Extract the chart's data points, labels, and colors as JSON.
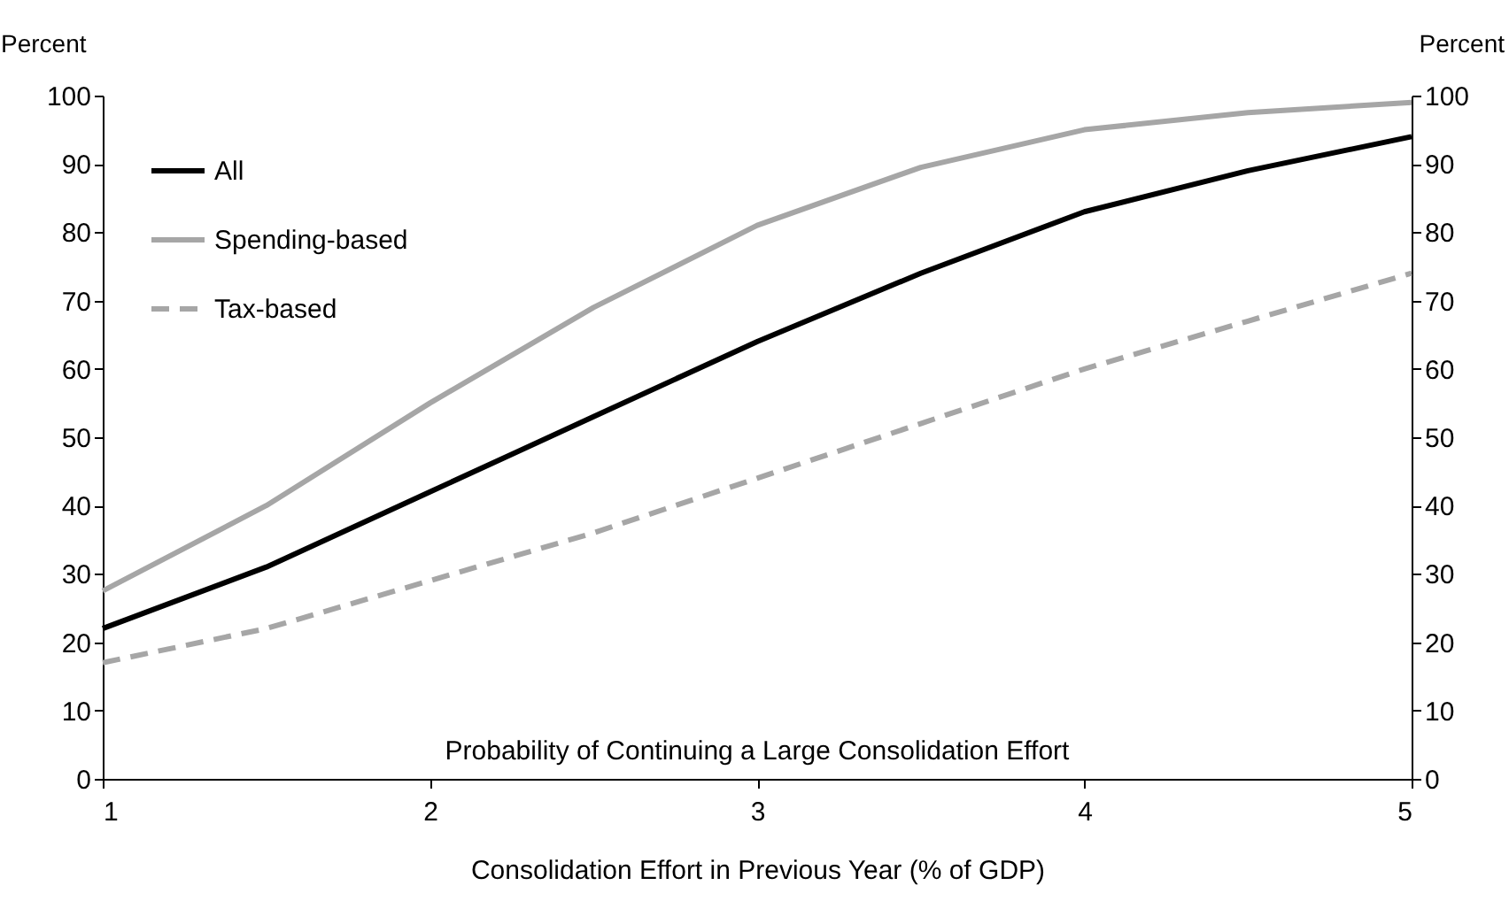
{
  "chart_data": {
    "type": "line",
    "xlabel": "Consolidation Effort in Previous Year (% of GDP)",
    "ylabel": "Percent",
    "y2label": "Percent",
    "x": [
      1,
      1.5,
      2,
      2.5,
      3,
      3.5,
      4,
      4.5,
      5
    ],
    "series": [
      {
        "name": "All",
        "color": "#000000",
        "line_style": "solid",
        "values": [
          22,
          31,
          42,
          53,
          64,
          74,
          83,
          89,
          94
        ]
      },
      {
        "name": "Spending-based",
        "color": "#a6a6a6",
        "line_style": "solid",
        "values": [
          27.5,
          40,
          55,
          69,
          81,
          89.5,
          95,
          97.5,
          99
        ]
      },
      {
        "name": "Tax-based",
        "color": "#a6a6a6",
        "line_style": "dashed",
        "values": [
          17,
          22,
          29,
          36,
          44,
          52,
          60,
          67,
          74
        ]
      }
    ],
    "xlim": [
      1,
      5
    ],
    "xticks": [
      1,
      2,
      3,
      4,
      5
    ],
    "ylim": [
      0,
      100
    ],
    "yticks": [
      0,
      10,
      20,
      30,
      40,
      50,
      60,
      70,
      80,
      90,
      100
    ],
    "y2lim": [
      0,
      100
    ],
    "y2ticks": [
      0,
      10,
      20,
      30,
      40,
      50,
      60,
      70,
      80,
      90,
      100
    ],
    "grid": false,
    "legend": "top left",
    "marker": "none",
    "annotations": [
      "Probability of Continuing a Large Consolidation Effort"
    ]
  }
}
